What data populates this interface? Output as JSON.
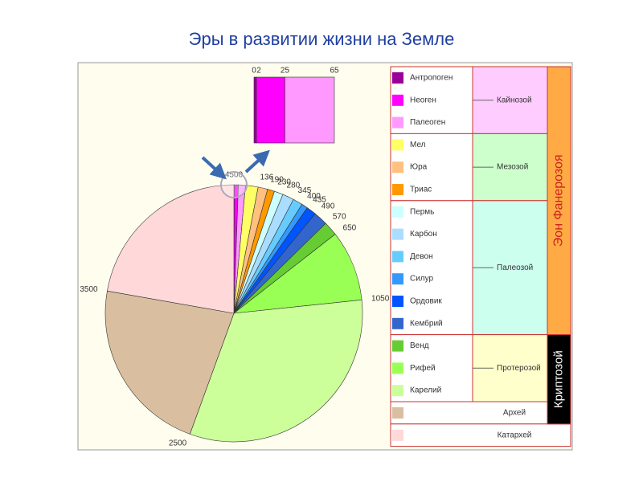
{
  "chart_data": {
    "type": "pie",
    "title": "Эры в развитии жизни на Земле",
    "boundaries": [
      0,
      2,
      25,
      65,
      136,
      190,
      230,
      280,
      345,
      400,
      435,
      490,
      570,
      650,
      1050,
      2500,
      3500,
      4500
    ],
    "eras": [
      {
        "name": "Кайнозой",
        "color": "#ffccff",
        "periods": [
          {
            "name": "Антропоген",
            "color": "#990099"
          },
          {
            "name": "Неоген",
            "color": "#ff00ff"
          },
          {
            "name": "Палеоген",
            "color": "#ff99ff"
          }
        ]
      },
      {
        "name": "Мезозой",
        "color": "#ccffcc",
        "periods": [
          {
            "name": "Мел",
            "color": "#ffff66"
          },
          {
            "name": "Юра",
            "color": "#ffc080"
          },
          {
            "name": "Триас",
            "color": "#ff9900"
          }
        ]
      },
      {
        "name": "Палеозой",
        "color": "#ccffee",
        "periods": [
          {
            "name": "Пермь",
            "color": "#ccffff"
          },
          {
            "name": "Карбон",
            "color": "#aaddff"
          },
          {
            "name": "Девон",
            "color": "#66ccff"
          },
          {
            "name": "Силур",
            "color": "#3399ff"
          },
          {
            "name": "Ордовик",
            "color": "#0055ff"
          },
          {
            "name": "Кембрий",
            "color": "#3366cc"
          }
        ]
      },
      {
        "name": "Протерозой",
        "color": "#ffffcc",
        "periods": [
          {
            "name": "Венд",
            "color": "#66cc33"
          },
          {
            "name": "Рифей",
            "color": "#99ff55"
          },
          {
            "name": "Карелий",
            "color": "#ccff99"
          }
        ]
      },
      {
        "name": "Архей",
        "periods": [
          {
            "color": "#d9bfa0"
          }
        ]
      },
      {
        "name": "Катархей",
        "periods": [
          {
            "color": "#ffd9d9"
          }
        ]
      }
    ],
    "eons": [
      {
        "name": "Эон Фанерозоя",
        "color": "#ffaa44"
      },
      {
        "name": "Криптозой",
        "color": "#000000"
      }
    ]
  }
}
